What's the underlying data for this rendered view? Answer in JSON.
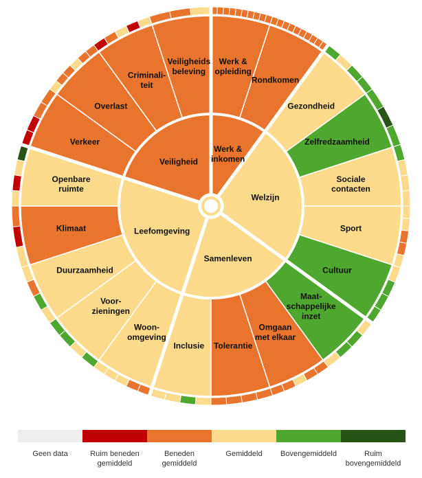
{
  "colors": {
    "geen_data": "#eeeeee",
    "ruim_beneden": "#c00000",
    "beneden": "#e8742e",
    "gemiddeld": "#fdda8c",
    "boven": "#4ea72e",
    "ruim_boven": "#275317"
  },
  "legend": [
    {
      "label": "Geen data",
      "level": "geen_data"
    },
    {
      "label": "Ruim beneden\ngemiddeld",
      "level": "ruim_beneden"
    },
    {
      "label": "Beneden\ngemiddeld",
      "level": "beneden"
    },
    {
      "label": "Gemiddeld",
      "level": "gemiddeld"
    },
    {
      "label": "Bovengemiddeld",
      "level": "boven"
    },
    {
      "label": "Ruim\nbovengemiddeld",
      "level": "ruim_boven"
    }
  ],
  "chart_data": {
    "type": "sunburst",
    "categories": [
      {
        "label": "Werk &\ninkomen",
        "level": "beneden",
        "children": [
          {
            "label": "Werk &\nopleiding",
            "level": "beneden",
            "indicators": [
              "beneden",
              "beneden",
              "beneden",
              "beneden",
              "beneden",
              "beneden",
              "beneden",
              "beneden",
              "beneden",
              "beneden"
            ]
          },
          {
            "label": "Rondkomen",
            "level": "beneden",
            "indicators": [
              "beneden",
              "beneden",
              "beneden",
              "beneden",
              "beneden",
              "beneden",
              "beneden",
              "beneden",
              "beneden",
              "beneden"
            ]
          }
        ]
      },
      {
        "label": "Welzijn",
        "level": "gemiddeld",
        "children": [
          {
            "label": "Gezondheid",
            "level": "gemiddeld",
            "indicators": [
              "boven",
              "gemiddeld",
              "boven",
              "boven"
            ]
          },
          {
            "label": "Zelfredzaamheid",
            "level": "boven",
            "indicators": [
              "boven",
              "ruim_boven",
              "boven"
            ]
          },
          {
            "label": "Sociale\ncontacten",
            "level": "gemiddeld",
            "indicators": [
              "boven",
              "gemiddeld",
              "gemiddeld",
              "gemiddeld"
            ]
          },
          {
            "label": "Sport",
            "level": "gemiddeld",
            "indicators": [
              "gemiddeld",
              "gemiddeld",
              "beneden",
              "beneden",
              "gemiddeld"
            ]
          },
          {
            "label": "Cultuur",
            "level": "boven",
            "indicators": [
              "gemiddeld",
              "boven",
              "boven",
              "boven"
            ]
          }
        ]
      },
      {
        "label": "Samenleven",
        "level": "gemiddeld",
        "children": [
          {
            "label": "Maat-\nschappelijke\ninzet",
            "level": "boven",
            "indicators": [
              "gemiddeld",
              "boven",
              "boven",
              "gemiddeld"
            ]
          },
          {
            "label": "Omgaan\nmet elkaar",
            "level": "beneden",
            "indicators": [
              "beneden",
              "beneden",
              "gemiddeld",
              "beneden",
              "beneden"
            ]
          },
          {
            "label": "Tolerantie",
            "level": "beneden",
            "indicators": [
              "beneden",
              "beneden",
              "beneden",
              "beneden"
            ]
          },
          {
            "label": "Inclusie",
            "level": "gemiddeld",
            "indicators": [
              "gemiddeld",
              "boven",
              "gemiddeld",
              "gemiddeld"
            ]
          }
        ]
      },
      {
        "label": "Leefomgeving",
        "level": "gemiddeld",
        "children": [
          {
            "label": "Woon-\nomgeving",
            "level": "gemiddeld",
            "indicators": [
              "beneden",
              "beneden",
              "gemiddeld",
              "gemiddeld",
              "gemiddeld"
            ]
          },
          {
            "label": "Voor-\nzieningen",
            "level": "gemiddeld",
            "indicators": [
              "boven",
              "gemiddeld",
              "boven",
              "boven"
            ]
          },
          {
            "label": "Duurzaamheid",
            "level": "gemiddeld",
            "indicators": [
              "gemiddeld",
              "boven",
              "beneden",
              "gemiddeld"
            ]
          },
          {
            "label": "Klimaat",
            "level": "beneden",
            "indicators": [
              "gemiddeld",
              "ruim_beneden",
              "beneden"
            ]
          },
          {
            "label": "Openbare\nruimte",
            "level": "gemiddeld",
            "indicators": [
              "gemiddeld",
              "ruim_beneden",
              "gemiddeld",
              "ruim_boven"
            ]
          }
        ]
      },
      {
        "label": "Veiligheid",
        "level": "beneden",
        "children": [
          {
            "label": "Verkeer",
            "level": "beneden",
            "indicators": [
              "ruim_beneden",
              "ruim_beneden",
              "beneden",
              "beneden"
            ]
          },
          {
            "label": "Overlast",
            "level": "beneden",
            "indicators": [
              "gemiddeld",
              "beneden",
              "beneden",
              "gemiddeld",
              "beneden",
              "beneden"
            ]
          },
          {
            "label": "Criminali-\nteit",
            "level": "beneden",
            "indicators": [
              "ruim_beneden",
              "beneden",
              "gemiddeld",
              "ruim_beneden",
              "gemiddeld"
            ]
          },
          {
            "label": "Veiligheids\nbeleving",
            "level": "beneden",
            "indicators": [
              "beneden",
              "beneden",
              "gemiddeld"
            ]
          }
        ]
      }
    ]
  }
}
